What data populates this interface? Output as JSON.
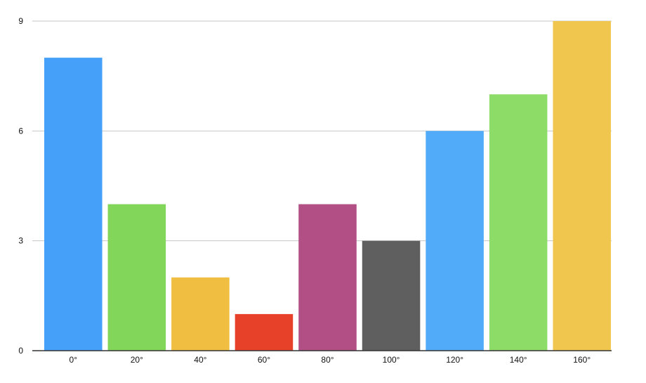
{
  "chart_data": {
    "type": "bar",
    "title": "",
    "xlabel": "",
    "ylabel": "",
    "categories": [
      "0°",
      "20°",
      "40°",
      "60°",
      "80°",
      "100°",
      "120°",
      "140°",
      "160°"
    ],
    "values": [
      8,
      4,
      2,
      1,
      4,
      3,
      6,
      7,
      9
    ],
    "colors": [
      "#44a0f8",
      "#82d65a",
      "#f0be41",
      "#e8412a",
      "#b24f84",
      "#5f5f5f",
      "#52abf8",
      "#8edc68",
      "#f1c64e"
    ],
    "ylim": [
      0,
      9
    ],
    "yticks": [
      0,
      3,
      6,
      9
    ],
    "grid": true,
    "legend": "none"
  }
}
